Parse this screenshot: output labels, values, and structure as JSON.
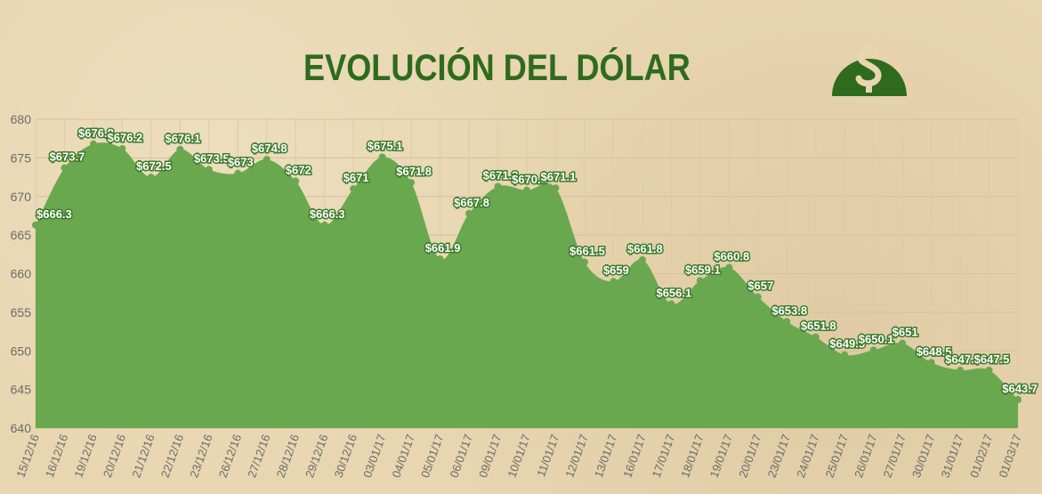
{
  "chart_data": {
    "type": "area",
    "title": "EVOLUCIÓN DEL DÓLAR",
    "xlabel": "",
    "ylabel": "",
    "ylim": [
      640,
      680
    ],
    "yticks": [
      640,
      645,
      650,
      655,
      660,
      665,
      670,
      675,
      680
    ],
    "grid": true,
    "legend": "none",
    "colors": {
      "area": "#6aa84f",
      "title": "#2f6b1d",
      "label_fill": "#ffffff",
      "label_stroke": "#3d7a2a",
      "axis_text": "#6b6b6b",
      "logo": "#2f6b1d"
    },
    "icon": "dollar-coin-icon",
    "x": [
      "15/12/16",
      "16/12/16",
      "19/12/16",
      "20/12/16",
      "21/12/16",
      "22/12/16",
      "23/12/16",
      "26/12/16",
      "27/12/16",
      "28/12/16",
      "29/12/16",
      "30/12/16",
      "03/01/17",
      "04/01/17",
      "05/01/17",
      "06/01/17",
      "09/01/17",
      "10/01/17",
      "11/01/17",
      "12/01/17",
      "13/01/17",
      "16/01/17",
      "17/01/17",
      "18/01/17",
      "19/01/17",
      "20/01/17",
      "23/01/17",
      "24/01/17",
      "25/01/17",
      "26/01/17",
      "27/01/17",
      "30/01/17",
      "31/01/17",
      "01/02/17",
      "01/03/17"
    ],
    "series": [
      {
        "values": [
          666.3,
          673.7,
          676.8,
          676.2,
          672.5,
          676.1,
          673.5,
          673,
          674.8,
          672,
          666.3,
          671,
          675.1,
          671.8,
          661.9,
          667.8,
          671.3,
          670.8,
          671.1,
          661.5,
          659,
          661.8,
          656.1,
          659.1,
          660.8,
          657,
          653.8,
          651.8,
          649.5,
          650.1,
          651,
          648.5,
          647.5,
          647.5,
          643.7
        ],
        "labels": [
          "$666.3",
          "$673.7",
          "$676.8",
          "$676.2",
          "$672.5",
          "$676.1",
          "$673.5",
          "$673",
          "$674.8",
          "$672",
          "$666.3",
          "$671",
          "$675.1",
          "$671.8",
          "$661.9",
          "$667.8",
          "$671.3",
          "$670.8",
          "$671.1",
          "$661.5",
          "$659",
          "$661.8",
          "$656.1",
          "$659.1",
          "$660.8",
          "$657",
          "$653.8",
          "$651.8",
          "$649.5",
          "$650.1",
          "$651",
          "$648.5",
          "$647.5",
          "$647.5",
          "$643.7"
        ]
      }
    ]
  }
}
